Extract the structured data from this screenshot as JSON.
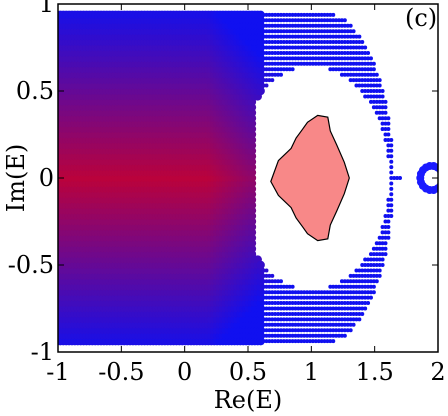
{
  "chart_data": {
    "type": "scatter",
    "panel_label": "(c)",
    "xlabel": "Re(E)",
    "ylabel": "Im(E)",
    "xlim": [
      -1,
      2
    ],
    "ylim": [
      -1,
      1
    ],
    "x_ticks": [
      {
        "value": -1,
        "label": "-1"
      },
      {
        "value": -0.5,
        "label": "-0.5"
      },
      {
        "value": 0,
        "label": "0"
      },
      {
        "value": 0.5,
        "label": "0.5"
      },
      {
        "value": 1,
        "label": "1"
      },
      {
        "value": 1.5,
        "label": "1.5"
      },
      {
        "value": 2,
        "label": "2"
      }
    ],
    "y_ticks": [
      {
        "value": 1,
        "label": "1"
      },
      {
        "value": 0.5,
        "label": "0.5"
      },
      {
        "value": 0,
        "label": "0"
      },
      {
        "value": -0.5,
        "label": "-0.5"
      },
      {
        "value": -1,
        "label": "-1"
      }
    ],
    "colors": {
      "dense_core": "#d8001c",
      "outer": "#1010f0",
      "inner_region": "#f88888",
      "island": "#1a1aff"
    },
    "grid": false,
    "inner_region_outline": [
      [
        0.68,
        -0.02
      ],
      [
        0.74,
        0.1
      ],
      [
        0.84,
        0.17
      ],
      [
        0.88,
        0.23
      ],
      [
        0.93,
        0.28
      ],
      [
        0.97,
        0.32
      ],
      [
        1.05,
        0.36
      ],
      [
        1.13,
        0.35
      ],
      [
        1.15,
        0.27
      ],
      [
        1.2,
        0.19
      ],
      [
        1.26,
        0.09
      ],
      [
        1.3,
        0.0
      ],
      [
        1.26,
        -0.09
      ],
      [
        1.2,
        -0.19
      ],
      [
        1.15,
        -0.27
      ],
      [
        1.13,
        -0.35
      ],
      [
        1.05,
        -0.36
      ],
      [
        0.97,
        -0.32
      ],
      [
        0.93,
        -0.28
      ],
      [
        0.88,
        -0.23
      ],
      [
        0.84,
        -0.17
      ],
      [
        0.74,
        -0.1
      ]
    ]
  }
}
